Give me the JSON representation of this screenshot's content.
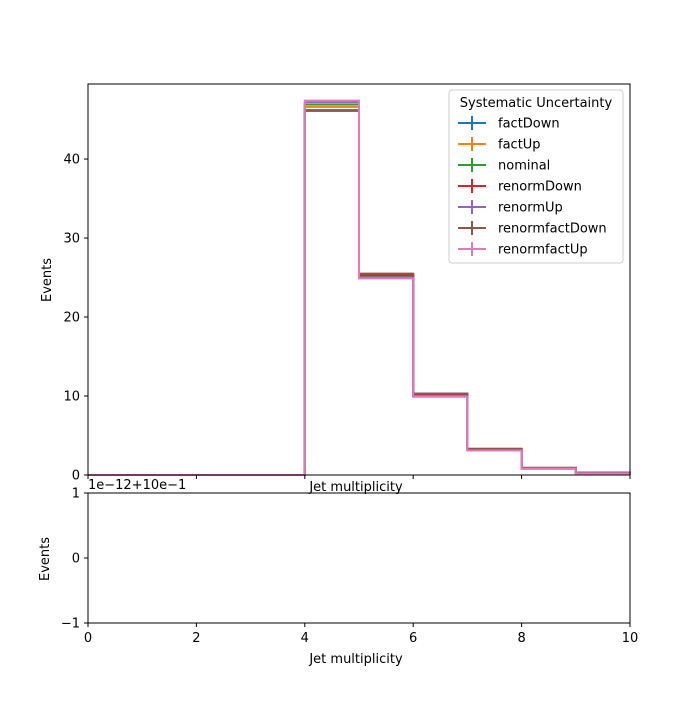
{
  "chart_data": [
    {
      "type": "line",
      "drawstyle": "steps-post",
      "xlabel": "Jet multiplicity",
      "ylabel": "Events",
      "xlim": [
        0,
        10
      ],
      "ylim": [
        0,
        49.5
      ],
      "xticks": [
        0,
        2,
        4,
        6,
        8,
        10
      ],
      "yticks": [
        0,
        10,
        20,
        30,
        40
      ],
      "legend": {
        "title": "Systematic Uncertainty",
        "placement": "top-right"
      },
      "bin_edges": [
        0,
        1,
        2,
        3,
        4,
        5,
        6,
        7,
        8,
        9,
        10
      ],
      "series": [
        {
          "name": "factDown",
          "color": "#1f77b4",
          "values": [
            0,
            0,
            0,
            0,
            46.9,
            25.4,
            10.3,
            3.3,
            0.9,
            0.3
          ]
        },
        {
          "name": "factUp",
          "color": "#ff7f0e",
          "values": [
            0,
            0,
            0,
            0,
            46.6,
            25.0,
            10.0,
            3.2,
            0.8,
            0.3
          ]
        },
        {
          "name": "nominal",
          "color": "#2ca02c",
          "values": [
            0,
            0,
            0,
            0,
            46.9,
            25.2,
            10.1,
            3.2,
            0.8,
            0.3
          ]
        },
        {
          "name": "renormDown",
          "color": "#d62728",
          "values": [
            0,
            0,
            0,
            0,
            46.1,
            25.3,
            10.2,
            3.3,
            0.9,
            0.3
          ]
        },
        {
          "name": "renormUp",
          "color": "#9467bd",
          "values": [
            0,
            0,
            0,
            0,
            47.2,
            25.0,
            10.0,
            3.2,
            0.8,
            0.3
          ]
        },
        {
          "name": "renormfactDown",
          "color": "#8c564b",
          "values": [
            0,
            0,
            0,
            0,
            46.2,
            25.5,
            10.3,
            3.3,
            0.9,
            0.3
          ]
        },
        {
          "name": "renormfactUp",
          "color": "#e377c2",
          "values": [
            0,
            0,
            0,
            0,
            47.4,
            24.9,
            9.9,
            3.1,
            0.8,
            0.2
          ]
        }
      ]
    },
    {
      "type": "line",
      "xlabel": "Jet multiplicity",
      "ylabel": "Events",
      "xlim": [
        0,
        10
      ],
      "ylim": [
        -1,
        1
      ],
      "xticks": [
        0,
        2,
        4,
        6,
        8,
        10
      ],
      "yticks": [
        -1,
        0,
        1
      ],
      "offset_text": "1e−12+10e−1",
      "series": []
    }
  ]
}
